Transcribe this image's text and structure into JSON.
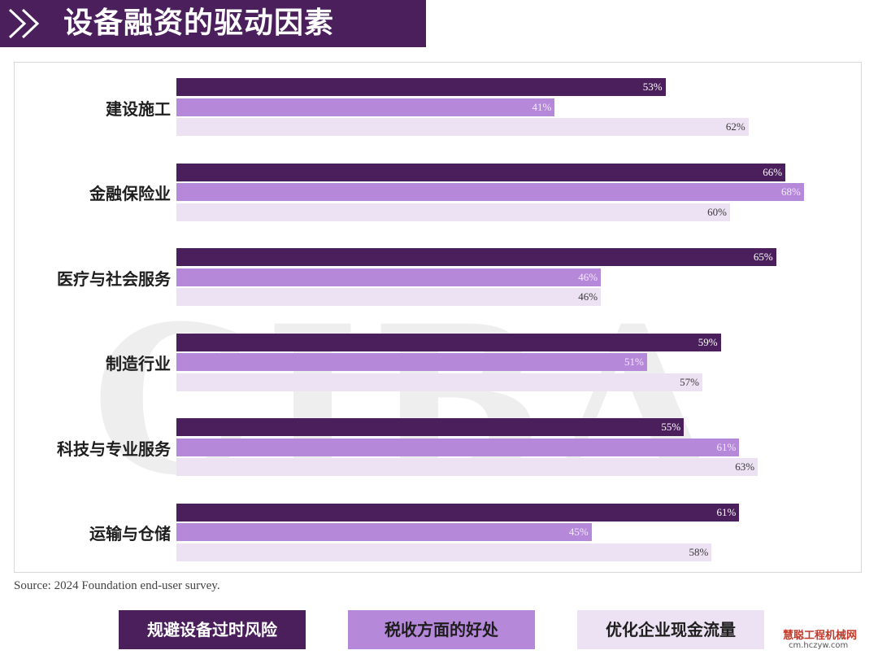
{
  "header": {
    "title": "设备融资的驱动因素"
  },
  "footer": {
    "source": "Source: 2024 Foundation end-user survey."
  },
  "colors": {
    "series1": "#4a1f5c",
    "series2": "#b688d9",
    "series3": "#ede2f3",
    "banner": "#4a1f5c"
  },
  "chart_data": {
    "type": "bar",
    "orientation": "horizontal",
    "title": "设备融资的驱动因素",
    "categories": [
      "建设施工",
      "金融保险业",
      "医疗与社会服务",
      "制造行业",
      "科技与专业服务",
      "运输与仓储"
    ],
    "series": [
      {
        "name": "规避设备过时风险",
        "values": [
          53,
          66,
          65,
          59,
          55,
          61
        ],
        "labels": [
          "53%",
          "66%",
          "65%",
          "59%",
          "55%",
          "61%"
        ]
      },
      {
        "name": "税收方面的好处",
        "values": [
          41,
          68,
          46,
          51,
          61,
          45
        ],
        "labels": [
          "41%",
          "68%",
          "46%",
          "51%",
          "61%",
          "45%"
        ]
      },
      {
        "name": "优化企业现金流量",
        "values": [
          62,
          60,
          46,
          57,
          63,
          58
        ],
        "labels": [
          "62%",
          "60%",
          "46%",
          "57%",
          "63%",
          "58%"
        ]
      }
    ],
    "unit": "%",
    "legend_position": "bottom",
    "grid": false
  },
  "watermark": {
    "text": "CIBA"
  },
  "logo": {
    "name": "慧聪工程机械网",
    "url": "cm.hczyw.com"
  }
}
